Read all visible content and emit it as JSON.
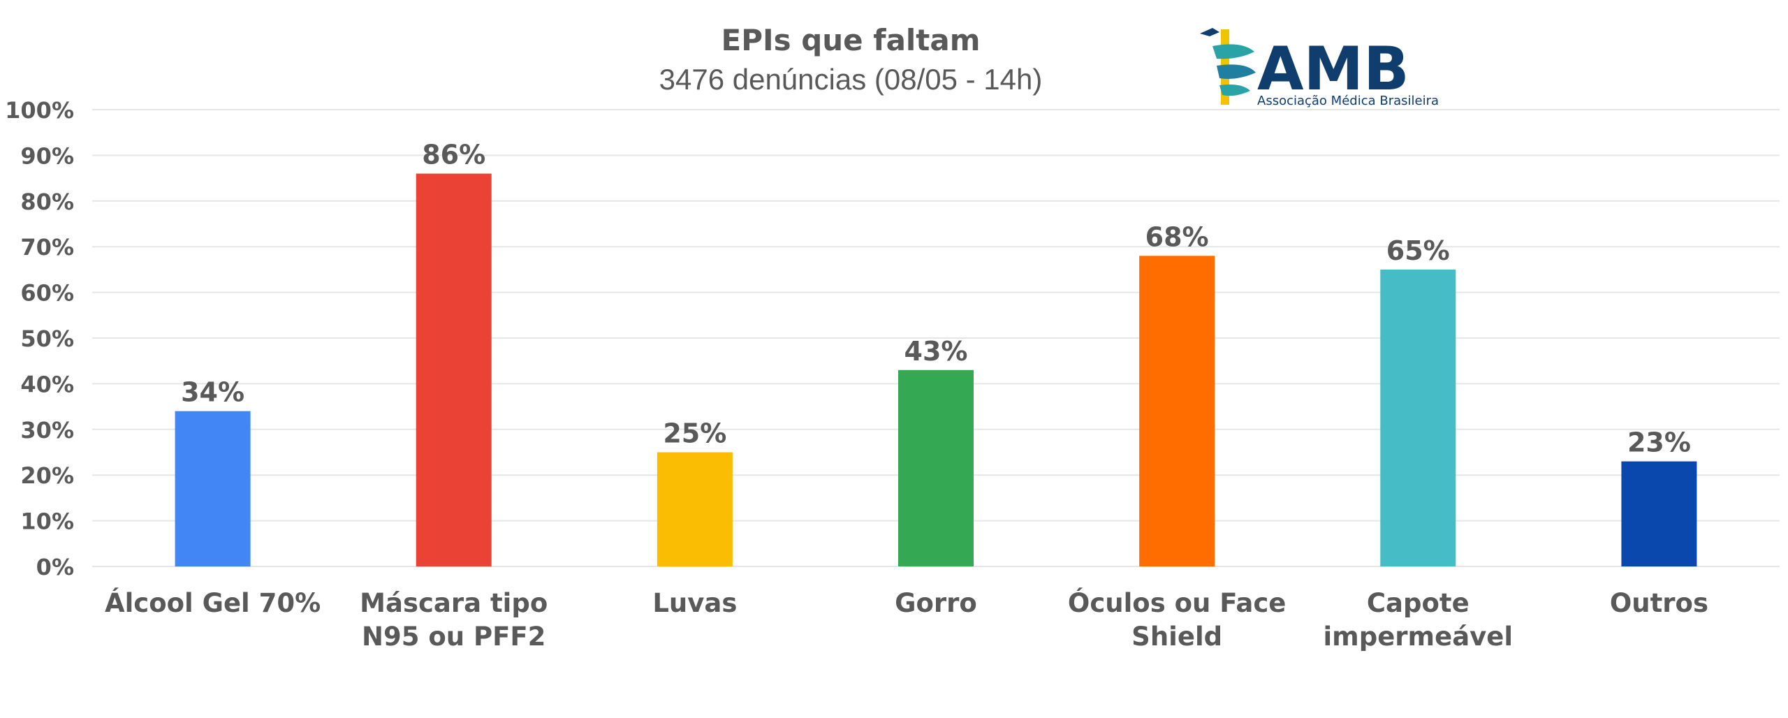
{
  "chart_data": {
    "type": "bar",
    "title": "EPIs que faltam",
    "subtitle": "3476 denúncias (08/05 - 14h)",
    "categories": [
      [
        "Álcool Gel 70%"
      ],
      [
        "Máscara tipo",
        "N95 ou PFF2"
      ],
      [
        "Luvas"
      ],
      [
        "Gorro"
      ],
      [
        "Óculos ou Face",
        "Shield"
      ],
      [
        "Capote",
        "impermeável"
      ],
      [
        "Outros"
      ]
    ],
    "values": [
      34,
      86,
      25,
      43,
      68,
      65,
      23
    ],
    "data_labels": [
      "34%",
      "86%",
      "25%",
      "43%",
      "68%",
      "65%",
      "23%"
    ],
    "colors": [
      "#4285f4",
      "#ea4335",
      "#fbbc04",
      "#34a853",
      "#ff6d01",
      "#46bdc6",
      "#0b48ad"
    ],
    "ylim": [
      0,
      100
    ],
    "yticks": [
      "0%",
      "10%",
      "20%",
      "30%",
      "40%",
      "50%",
      "60%",
      "70%",
      "80%",
      "90%",
      "100%"
    ],
    "grid": true,
    "xlabel": "",
    "ylabel": ""
  },
  "logo": {
    "text": "AMB",
    "subtext": "Associação Médica Brasileira"
  }
}
